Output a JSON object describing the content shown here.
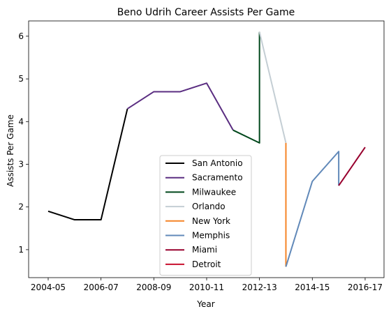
{
  "chart_data": {
    "type": "line",
    "title": "Beno Udrih Career Assists Per Game",
    "xlabel": "Year",
    "ylabel": "Assists Per Game",
    "x_tick_labels": [
      "2004-05",
      "2006-07",
      "2008-09",
      "2010-11",
      "2012-13",
      "2014-15",
      "2016-17"
    ],
    "y_ticks": [
      1,
      2,
      3,
      4,
      5,
      6
    ],
    "xlim": [
      "2003-04 (mid)",
      "2016-17 (end)"
    ],
    "ylim": [
      0.32,
      6.37
    ],
    "grid": false,
    "legend_position": "lower center",
    "series": [
      {
        "name": "San Antonio",
        "color": "#000000",
        "points": [
          [
            "2004-05",
            1.9
          ],
          [
            "2005-06",
            1.7
          ],
          [
            "2006-07",
            1.7
          ],
          [
            "2007-08",
            4.3
          ]
        ]
      },
      {
        "name": "Sacramento",
        "color": "#5a2d81",
        "points": [
          [
            "2007-08",
            4.3
          ],
          [
            "2008-09",
            4.7
          ],
          [
            "2009-10",
            4.7
          ],
          [
            "2010-11",
            4.9
          ],
          [
            "2011-12",
            3.8
          ]
        ]
      },
      {
        "name": "Milwaukee",
        "color": "#00471b",
        "points": [
          [
            "2011-12",
            3.8
          ],
          [
            "2012-13",
            3.5
          ],
          [
            "2012-13",
            6.1
          ]
        ]
      },
      {
        "name": "Orlando",
        "color": "#c4ced4",
        "points": [
          [
            "2012-13",
            6.1
          ],
          [
            "2013-14",
            3.5
          ]
        ]
      },
      {
        "name": "New York",
        "color": "#f58426",
        "points": [
          [
            "2013-14",
            3.5
          ],
          [
            "2013-14",
            0.6
          ]
        ]
      },
      {
        "name": "Memphis",
        "color": "#6189b9",
        "points": [
          [
            "2013-14",
            0.6
          ],
          [
            "2014-15",
            2.6
          ],
          [
            "2015-16",
            3.3
          ],
          [
            "2015-16",
            2.5
          ]
        ]
      },
      {
        "name": "Miami",
        "color": "#98002e",
        "points": [
          [
            "2015-16",
            2.5
          ],
          [
            "2016-17",
            3.4
          ]
        ]
      },
      {
        "name": "Detroit",
        "color": "#c8102e",
        "points": []
      }
    ]
  }
}
